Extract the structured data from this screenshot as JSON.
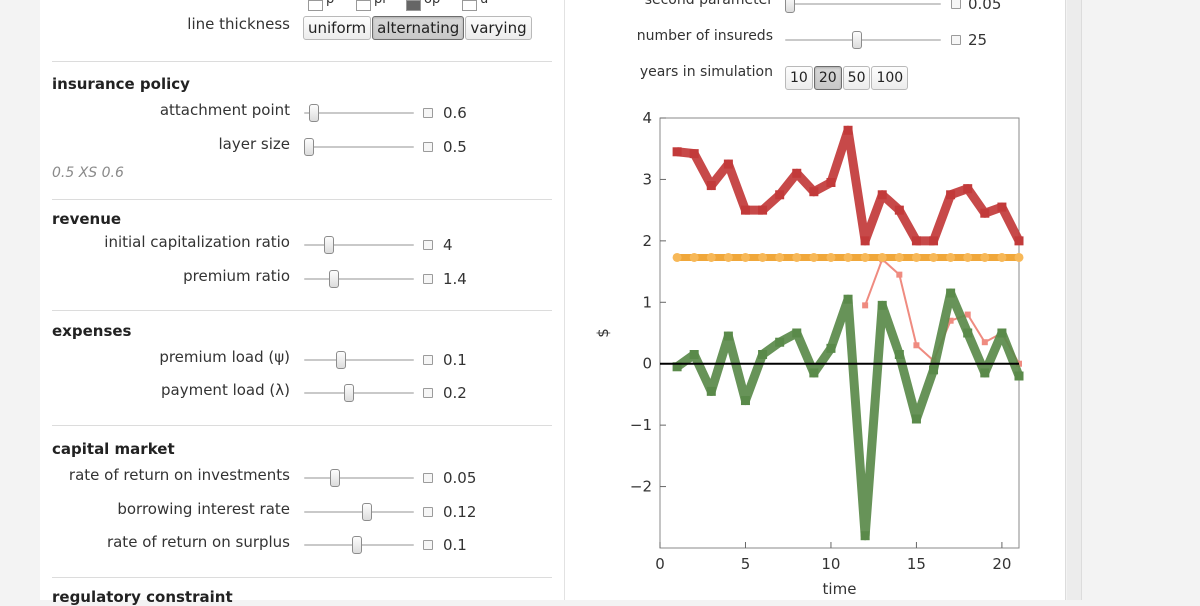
{
  "left": {
    "top_checkboxes": [
      {
        "label": "p",
        "checked": false
      },
      {
        "label": "pr",
        "checked": false
      },
      {
        "label": "op",
        "checked": true
      },
      {
        "label": "u",
        "checked": false
      }
    ],
    "line_thickness": {
      "label": "line thickness",
      "options": [
        "uniform",
        "alternating",
        "varying"
      ],
      "selected": "alternating"
    },
    "insurance_policy": {
      "title": "insurance policy",
      "attachment_point": {
        "label": "attachment point",
        "value": "0.6",
        "level": 0.05
      },
      "layer_size": {
        "label": "layer size",
        "value": "0.5",
        "level": 0.0
      },
      "note": "0.5 XS 0.6"
    },
    "revenue": {
      "title": "revenue",
      "initial_capitalization_ratio": {
        "label": "initial capitalization ratio",
        "value": "4",
        "level": 0.2
      },
      "premium_ratio": {
        "label": "premium ratio",
        "value": "1.4",
        "level": 0.25
      }
    },
    "expenses": {
      "title": "expenses",
      "premium_load": {
        "label": "premium load (ψ)",
        "value": "0.1",
        "level": 0.32
      },
      "payment_load": {
        "label": "payment load (λ)",
        "value": "0.2",
        "level": 0.4
      }
    },
    "capital_market": {
      "title": "capital market",
      "rate_of_return_on_investments": {
        "label": "rate of return on investments",
        "value": "0.05",
        "level": 0.26
      },
      "borrowing_interest_rate": {
        "label": "borrowing interest rate",
        "value": "0.12",
        "level": 0.58
      },
      "rate_of_return_on_surplus": {
        "label": "rate of return on surplus",
        "value": "0.1",
        "level": 0.48
      }
    },
    "regulatory_constraint": {
      "title": "regulatory constraint"
    }
  },
  "right": {
    "second_parameter": {
      "label": "second parameter",
      "value": "0.05",
      "level": 0.0
    },
    "number_of_insureds": {
      "label": "number of insureds",
      "value": "25",
      "level": 0.46
    },
    "years_in_simulation": {
      "label": "years in simulation",
      "options": [
        "10",
        "20",
        "50",
        "100"
      ],
      "selected": "20"
    }
  },
  "chart_data": {
    "type": "line",
    "xlabel": "time",
    "ylabel": "$",
    "xlim": [
      0,
      21
    ],
    "ylim": [
      -3,
      4
    ],
    "xticks": [
      0,
      5,
      10,
      15,
      20
    ],
    "yticks": [
      -2,
      -1,
      0,
      1,
      2,
      3,
      4
    ],
    "grid": false,
    "series": [
      {
        "color": "#c23a3a",
        "style": "thick",
        "x": [
          1,
          2,
          3,
          4,
          5,
          6,
          7,
          8,
          9,
          10,
          11,
          12,
          13,
          14,
          15,
          16,
          17,
          18,
          19,
          20,
          21
        ],
        "y": [
          3.45,
          3.42,
          2.9,
          3.25,
          2.5,
          2.5,
          2.75,
          3.1,
          2.8,
          2.95,
          3.8,
          2.0,
          2.75,
          2.5,
          2.0,
          2.0,
          2.75,
          2.85,
          2.45,
          2.55,
          2.0
        ]
      },
      {
        "color": "#ef8b80",
        "style": "thin",
        "x": [
          12,
          13,
          14,
          15,
          16,
          17,
          18,
          19,
          20,
          21
        ],
        "y": [
          0.95,
          1.7,
          1.45,
          0.3,
          0.05,
          0.7,
          0.8,
          0.35,
          0.5,
          0.0
        ]
      },
      {
        "color": "#f0a73a",
        "style": "dotted-thick",
        "x": [
          1,
          2,
          3,
          4,
          5,
          6,
          7,
          8,
          9,
          10,
          11,
          12,
          13,
          14,
          15,
          16,
          17,
          18,
          19,
          20,
          21
        ],
        "y": [
          1.73,
          1.73,
          1.73,
          1.73,
          1.73,
          1.73,
          1.73,
          1.73,
          1.73,
          1.73,
          1.73,
          1.73,
          1.73,
          1.73,
          1.73,
          1.73,
          1.73,
          1.73,
          1.73,
          1.73,
          1.73
        ]
      },
      {
        "color": "#5a8a4a",
        "style": "thick",
        "x": [
          1,
          2,
          3,
          4,
          5,
          6,
          7,
          8,
          9,
          10,
          11,
          12,
          13,
          14,
          15,
          16,
          17,
          18,
          19,
          20,
          21
        ],
        "y": [
          -0.05,
          0.15,
          -0.45,
          0.45,
          -0.6,
          0.15,
          0.35,
          0.5,
          -0.15,
          0.25,
          1.05,
          -2.8,
          0.95,
          0.15,
          -0.9,
          -0.1,
          1.15,
          0.5,
          -0.15,
          0.5,
          -0.2
        ]
      },
      {
        "color": "#000000",
        "style": "axis-line",
        "x": [
          0,
          21
        ],
        "y": [
          0,
          0
        ]
      }
    ]
  }
}
